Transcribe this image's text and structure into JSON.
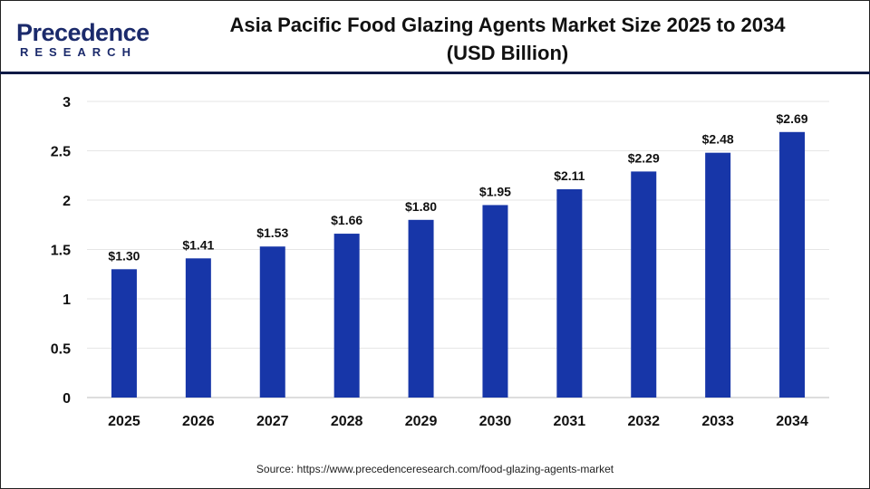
{
  "title_line1": "Asia Pacific Food Glazing Agents Market Size 2025 to 2034",
  "title_line2": "(USD Billion)",
  "logo": {
    "line1": "Precedence",
    "line2": "RESEARCH"
  },
  "source": "Source: https://www.precedenceresearch.com/food-glazing-agents-market",
  "colors": {
    "bar": "#1736a8",
    "header_line": "#0f1a45"
  },
  "chart_data": {
    "type": "bar",
    "title": "Asia Pacific Food Glazing Agents Market Size 2025 to 2034 (USD Billion)",
    "categories": [
      "2025",
      "2026",
      "2027",
      "2028",
      "2029",
      "2030",
      "2031",
      "2032",
      "2033",
      "2034"
    ],
    "values": [
      1.3,
      1.41,
      1.53,
      1.66,
      1.8,
      1.95,
      2.11,
      2.29,
      2.48,
      2.69
    ],
    "data_labels": [
      "$1.30",
      "$1.41",
      "$1.53",
      "$1.66",
      "$1.80",
      "$1.95",
      "$2.11",
      "$2.29",
      "$2.48",
      "$2.69"
    ],
    "yticks": [
      "0",
      "0.5",
      "1",
      "1.5",
      "2",
      "2.5",
      "3"
    ],
    "ylim": [
      0,
      3
    ],
    "grid": true,
    "xlabel": "",
    "ylabel": ""
  }
}
